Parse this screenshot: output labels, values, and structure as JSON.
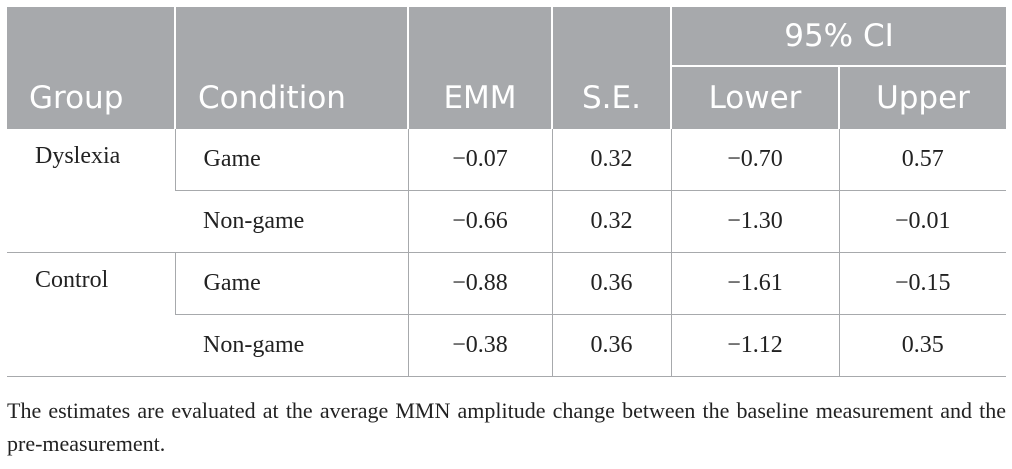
{
  "header": {
    "ci_label": "95% CI",
    "columns": [
      "Group",
      "Condition",
      "EMM",
      "S.E.",
      "Lower",
      "Upper"
    ]
  },
  "groups": [
    {
      "name": "Dyslexia",
      "rows": [
        {
          "condition": "Game",
          "emm": "−0.07",
          "se": "0.32",
          "lower": "−0.70",
          "upper": "0.57"
        },
        {
          "condition": "Non-game",
          "emm": "−0.66",
          "se": "0.32",
          "lower": "−1.30",
          "upper": "−0.01"
        }
      ]
    },
    {
      "name": "Control",
      "rows": [
        {
          "condition": "Game",
          "emm": "−0.88",
          "se": "0.36",
          "lower": "−1.61",
          "upper": "−0.15"
        },
        {
          "condition": "Non-game",
          "emm": "−0.38",
          "se": "0.36",
          "lower": "−1.12",
          "upper": "0.35"
        }
      ]
    }
  ],
  "note": "The estimates are evaluated at the average MMN amplitude change between the baseline measurement and the pre-measurement."
}
